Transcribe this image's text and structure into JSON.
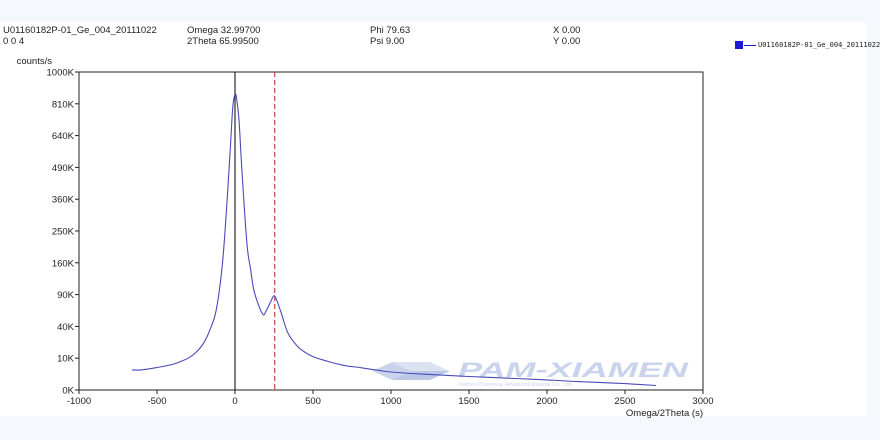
{
  "header": {
    "sample_id": "U01160182P-01_Ge_004_20111022",
    "reflection": "0 0 4",
    "omega": "Omega 32.99700",
    "two_theta": "2Theta 65.99500",
    "phi": "Phi 79.63",
    "psi": "Psi 9.00",
    "x": "X 0.00",
    "y": "Y 0.00"
  },
  "legend": {
    "label": "U01160182P-01_Ge_004_20111022",
    "color": "#1a1ad6"
  },
  "watermark": {
    "brand": "PAM-XIAMEN",
    "subtitle": "Xiamen Powerway Advanced Material Co., Ltd."
  },
  "chart_data": {
    "type": "line",
    "ylabel": "counts/s",
    "xlabel": "Omega/2Theta (s)",
    "xlim": [
      -1000,
      3000
    ],
    "x_ticks": [
      -1000,
      -500,
      0,
      500,
      1000,
      1500,
      2000,
      2500,
      3000
    ],
    "y_ticks": [
      "0K",
      "10K",
      "40K",
      "90K",
      "160K",
      "250K",
      "360K",
      "490K",
      "640K",
      "810K",
      "1000K"
    ],
    "y_scale": "sqrt",
    "grid": false,
    "series_color": "#4a4ab8",
    "reference_lines": [
      {
        "x": 0,
        "style": "solid",
        "color": "#000000"
      },
      {
        "x": 255,
        "style": "dashed",
        "color": "#b02020"
      }
    ],
    "series": [
      {
        "name": "U01160182P-01_Ge_004_20111022",
        "x": [
          -660,
          -600,
          -500,
          -400,
          -350,
          -300,
          -250,
          -200,
          -160,
          -120,
          -80,
          -50,
          -30,
          -15,
          0,
          10,
          25,
          40,
          60,
          80,
          100,
          120,
          150,
          180,
          200,
          230,
          250,
          270,
          300,
          340,
          400,
          450,
          500,
          600,
          700,
          800,
          900,
          1000,
          1200,
          1500,
          1800,
          2000,
          2200,
          2500,
          2700
        ],
        "y": [
          4000,
          4000,
          5000,
          6500,
          8000,
          10000,
          14000,
          22000,
          36000,
          64000,
          160000,
          360000,
          576000,
          784000,
          864000,
          841000,
          729000,
          529000,
          324000,
          196000,
          144000,
          100000,
          72000,
          56000,
          62000,
          78000,
          88000,
          78000,
          56000,
          32000,
          19000,
          14000,
          11000,
          8000,
          6000,
          5000,
          4000,
          3200,
          2500,
          1800,
          1300,
          1000,
          700,
          400,
          200
        ]
      }
    ]
  }
}
